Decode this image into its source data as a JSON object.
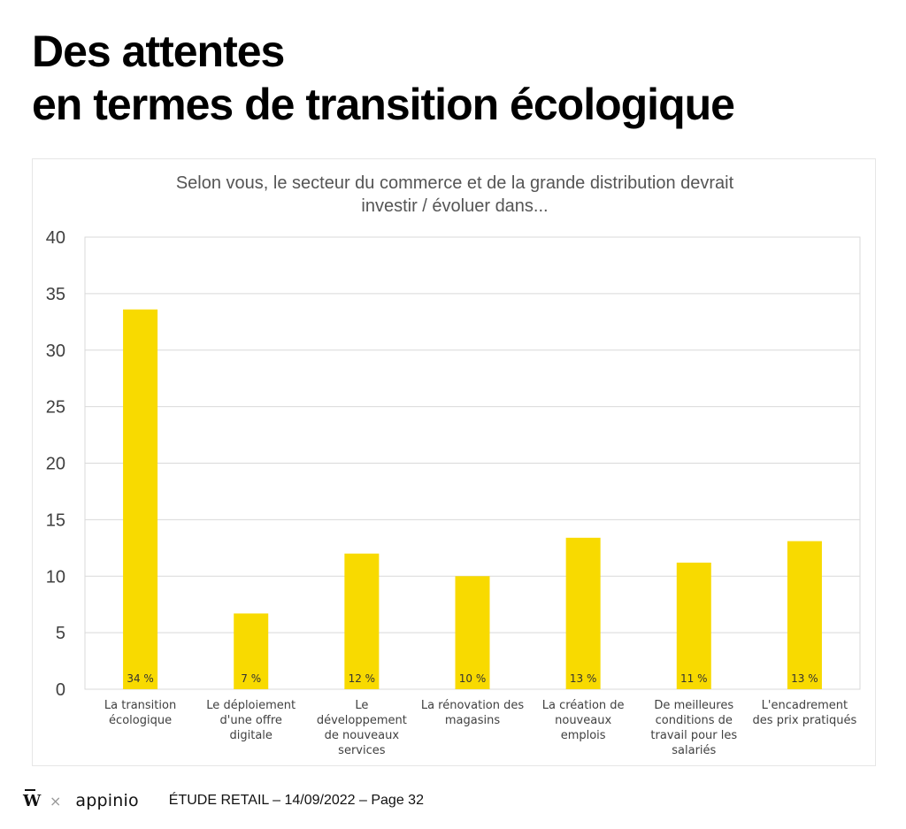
{
  "page": {
    "title_line1": "Des attentes",
    "title_line2": "en termes de transition écologique"
  },
  "footer": {
    "logo_mark": "W",
    "separator": "×",
    "brand": "appinio",
    "study_label": "ÉTUDE RETAIL – 14/09/2022 – Page 32"
  },
  "colors": {
    "bar": "#F8DA00",
    "grid": "#D9D9D9",
    "text": "#404040"
  },
  "chart_data": {
    "type": "bar",
    "title": "Selon vous, le secteur du commerce et de la grande distribution devrait investir / évoluer dans...",
    "title_lines": [
      "Selon vous, le secteur du commerce et de la grande distribution devrait",
      "investir / évoluer dans..."
    ],
    "categories": [
      "La transition écologique",
      "Le déploiement d'une offre digitale",
      "Le développement de nouveaux services",
      "La rénovation des magasins",
      "La création de nouveaux emplois",
      "De meilleures conditions de travail pour les salariés",
      "L'encadrement des prix pratiqués"
    ],
    "category_lines": [
      [
        "La transition",
        "écologique"
      ],
      [
        "Le déploiement",
        "d'une offre",
        "digitale"
      ],
      [
        "Le",
        "développement",
        "de nouveaux",
        "services"
      ],
      [
        "La rénovation des",
        "magasins"
      ],
      [
        "La création de",
        "nouveaux",
        "emplois"
      ],
      [
        "De meilleures",
        "conditions de",
        "travail pour les",
        "salariés"
      ],
      [
        "L'encadrement",
        "des prix pratiqués"
      ]
    ],
    "values": [
      33.6,
      6.7,
      12.0,
      10.0,
      13.4,
      11.2,
      13.1
    ],
    "data_labels": [
      "34 %",
      "7 %",
      "12 %",
      "10 %",
      "13 %",
      "11 %",
      "13 %"
    ],
    "ylim": [
      0,
      40
    ],
    "yticks": [
      0,
      5,
      10,
      15,
      20,
      25,
      30,
      35,
      40
    ],
    "xlabel": "",
    "ylabel": "",
    "grid": true,
    "legend": "none"
  }
}
